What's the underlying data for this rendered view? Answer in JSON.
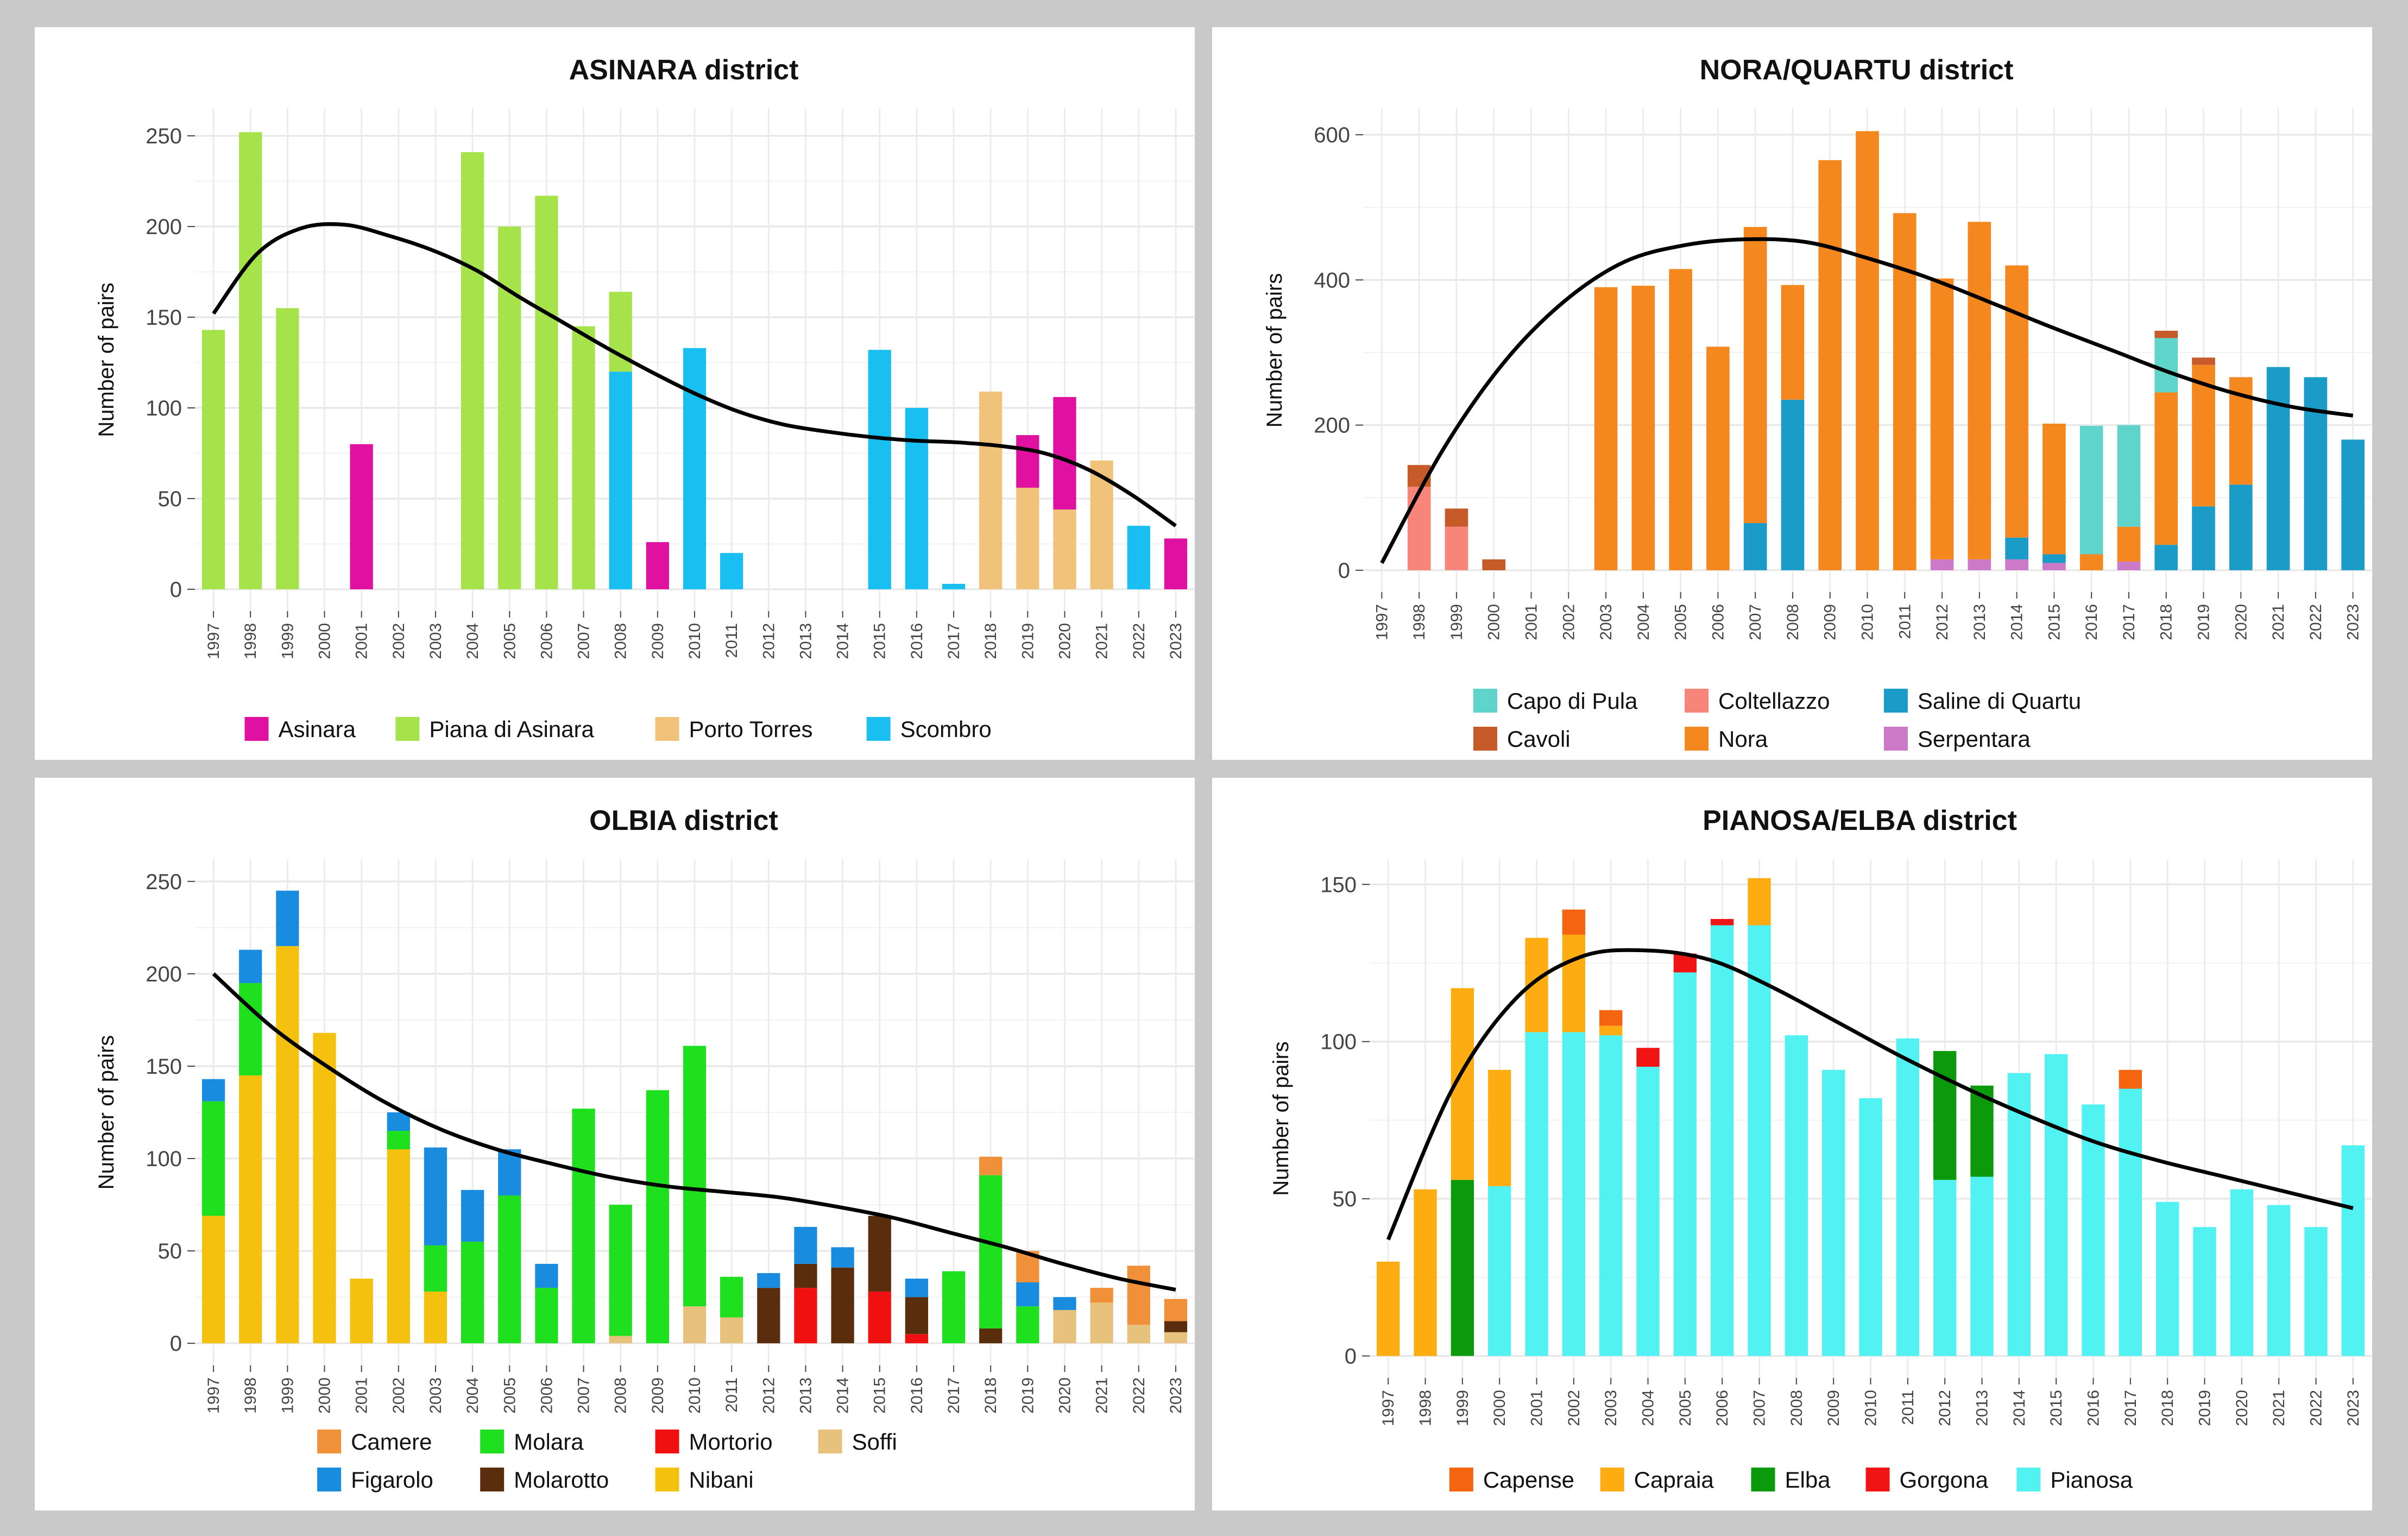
{
  "chart_data": [
    {
      "type": "bar",
      "stacked": true,
      "title": "ASINARA district",
      "xlabel": "",
      "ylabel": "Number of pairs",
      "categories": [
        "1997",
        "1998",
        "1999",
        "2000",
        "2001",
        "2002",
        "2003",
        "2004",
        "2005",
        "2006",
        "2007",
        "2008",
        "2009",
        "2010",
        "2011",
        "2012",
        "2013",
        "2014",
        "2015",
        "2016",
        "2017",
        "2018",
        "2019",
        "2020",
        "2021",
        "2022",
        "2023"
      ],
      "ylim": [
        -12,
        265
      ],
      "yticks": [
        0,
        50,
        100,
        150,
        200,
        250
      ],
      "legend_order": [
        "Asinara",
        "Piana di Asinara",
        "Porto Torres",
        "Scombro"
      ],
      "series": [
        {
          "name": "Scombro",
          "color": "#19BFF0",
          "values": [
            0,
            0,
            0,
            0,
            0,
            0,
            0,
            0,
            0,
            0,
            0,
            120,
            0,
            133,
            20,
            0,
            0,
            0,
            132,
            100,
            3,
            0,
            0,
            0,
            0,
            35,
            0
          ]
        },
        {
          "name": "Porto Torres",
          "color": "#F0C27A",
          "values": [
            0,
            0,
            0,
            0,
            0,
            0,
            0,
            0,
            0,
            0,
            0,
            0,
            0,
            0,
            0,
            0,
            0,
            0,
            0,
            0,
            0,
            109,
            56,
            44,
            71,
            0,
            0
          ]
        },
        {
          "name": "Piana di Asinara",
          "color": "#A6E34B",
          "values": [
            143,
            252,
            155,
            0,
            0,
            0,
            0,
            241,
            200,
            217,
            145,
            44,
            0,
            0,
            0,
            0,
            0,
            0,
            0,
            0,
            0,
            0,
            0,
            0,
            0,
            0,
            0
          ]
        },
        {
          "name": "Asinara",
          "color": "#E010A0",
          "values": [
            0,
            0,
            0,
            0,
            80,
            0,
            0,
            0,
            0,
            0,
            0,
            0,
            26,
            0,
            0,
            0,
            0,
            0,
            0,
            0,
            0,
            0,
            29,
            62,
            0,
            0,
            28
          ]
        }
      ],
      "trend": [
        152,
        185,
        199,
        201,
        195,
        187,
        176,
        161,
        147,
        133,
        120,
        108,
        98,
        91,
        87,
        84,
        82,
        81,
        79,
        75,
        66,
        52,
        35
      ]
    },
    {
      "type": "bar",
      "stacked": true,
      "title": "NORA/QUARTU district",
      "xlabel": "",
      "ylabel": "Number of pairs",
      "categories": [
        "1997",
        "1998",
        "1999",
        "2000",
        "2001",
        "2002",
        "2003",
        "2004",
        "2005",
        "2006",
        "2007",
        "2008",
        "2009",
        "2010",
        "2011",
        "2012",
        "2013",
        "2014",
        "2015",
        "2016",
        "2017",
        "2018",
        "2019",
        "2020",
        "2021",
        "2022",
        "2023"
      ],
      "ylim": [
        -30,
        636
      ],
      "yticks": [
        0,
        200,
        400,
        600
      ],
      "legend_order": [
        "Capo di Pula",
        "Coltellazzo",
        "Saline di Quartu",
        "Cavoli",
        "Nora",
        "Serpentara"
      ],
      "series": [
        {
          "name": "Serpentara",
          "color": "#CC79C8",
          "values": [
            0,
            0,
            0,
            0,
            0,
            0,
            0,
            0,
            0,
            0,
            0,
            0,
            0,
            0,
            0,
            15,
            15,
            15,
            10,
            0,
            12,
            0,
            0,
            0,
            0,
            0,
            0
          ]
        },
        {
          "name": "Saline di Quartu",
          "color": "#1A9BC8",
          "values": [
            0,
            0,
            0,
            0,
            0,
            0,
            0,
            0,
            0,
            0,
            65,
            235,
            0,
            0,
            0,
            0,
            0,
            30,
            12,
            0,
            0,
            35,
            88,
            118,
            280,
            266,
            180
          ]
        },
        {
          "name": "Nora",
          "color": "#F5871F",
          "values": [
            0,
            0,
            0,
            0,
            0,
            0,
            390,
            392,
            415,
            308,
            408,
            158,
            565,
            605,
            492,
            387,
            465,
            375,
            180,
            22,
            48,
            210,
            195,
            148,
            0,
            0,
            0
          ]
        },
        {
          "name": "Capo di Pula",
          "color": "#5ED4CA",
          "values": [
            0,
            0,
            0,
            0,
            0,
            0,
            0,
            0,
            0,
            0,
            0,
            0,
            0,
            0,
            0,
            0,
            0,
            0,
            0,
            177,
            140,
            75,
            0,
            0,
            0,
            0,
            0
          ]
        },
        {
          "name": "Coltellazzo",
          "color": "#F7857A",
          "values": [
            0,
            115,
            60,
            0,
            0,
            0,
            0,
            0,
            0,
            0,
            0,
            0,
            0,
            0,
            0,
            0,
            0,
            0,
            0,
            0,
            0,
            0,
            0,
            0,
            0,
            0,
            0
          ]
        },
        {
          "name": "Cavoli",
          "color": "#C65A28",
          "values": [
            0,
            30,
            25,
            15,
            0,
            0,
            0,
            0,
            0,
            0,
            0,
            0,
            0,
            0,
            0,
            0,
            0,
            0,
            0,
            0,
            0,
            10,
            10,
            0,
            0,
            0,
            0
          ]
        }
      ],
      "trend": [
        10,
        165,
        285,
        370,
        425,
        448,
        456,
        452,
        430,
        403,
        370,
        336,
        304,
        272,
        245,
        225,
        213
      ]
    },
    {
      "type": "bar",
      "stacked": true,
      "title": "OLBIA district",
      "xlabel": "",
      "ylabel": "Number of pairs",
      "categories": [
        "1997",
        "1998",
        "1999",
        "2000",
        "2001",
        "2002",
        "2003",
        "2004",
        "2005",
        "2006",
        "2007",
        "2008",
        "2009",
        "2010",
        "2011",
        "2012",
        "2013",
        "2014",
        "2015",
        "2016",
        "2017",
        "2018",
        "2019",
        "2020",
        "2021",
        "2022",
        "2023"
      ],
      "ylim": [
        -12,
        262
      ],
      "yticks": [
        0,
        50,
        100,
        150,
        200,
        250
      ],
      "legend_order": [
        "Camere",
        "Molara",
        "Mortorio",
        "Soffi",
        "Figarolo",
        "Molarotto",
        "Nibani"
      ],
      "series": [
        {
          "name": "Nibani",
          "color": "#F5C10F",
          "values": [
            69,
            145,
            215,
            168,
            35,
            105,
            28,
            0,
            0,
            0,
            0,
            0,
            0,
            0,
            0,
            0,
            0,
            0,
            0,
            0,
            0,
            0,
            0,
            0,
            0,
            0,
            0
          ]
        },
        {
          "name": "Soffi",
          "color": "#E7C27C",
          "values": [
            0,
            0,
            0,
            0,
            0,
            0,
            0,
            0,
            0,
            0,
            0,
            4,
            0,
            20,
            14,
            0,
            0,
            0,
            0,
            0,
            0,
            0,
            0,
            18,
            22,
            10,
            6
          ]
        },
        {
          "name": "Mortorio",
          "color": "#F01010",
          "values": [
            0,
            0,
            0,
            0,
            0,
            0,
            0,
            0,
            0,
            0,
            0,
            0,
            0,
            0,
            0,
            0,
            30,
            0,
            28,
            5,
            0,
            0,
            0,
            0,
            0,
            0,
            0
          ]
        },
        {
          "name": "Molarotto",
          "color": "#5A2E0C",
          "values": [
            0,
            0,
            0,
            0,
            0,
            0,
            0,
            0,
            0,
            0,
            0,
            0,
            0,
            0,
            0,
            30,
            13,
            41,
            41,
            20,
            0,
            8,
            0,
            0,
            0,
            0,
            6
          ]
        },
        {
          "name": "Molara",
          "color": "#1FE01F",
          "values": [
            62,
            50,
            0,
            0,
            0,
            10,
            25,
            55,
            80,
            30,
            127,
            71,
            137,
            141,
            22,
            0,
            0,
            0,
            0,
            0,
            39,
            83,
            20,
            0,
            0,
            0,
            0
          ]
        },
        {
          "name": "Figarolo",
          "color": "#1A8CE0",
          "values": [
            12,
            18,
            30,
            0,
            0,
            10,
            53,
            28,
            25,
            13,
            0,
            0,
            0,
            0,
            0,
            8,
            20,
            11,
            0,
            10,
            0,
            0,
            13,
            7,
            0,
            0,
            0
          ]
        },
        {
          "name": "Camere",
          "color": "#F0913A",
          "values": [
            0,
            0,
            0,
            0,
            0,
            0,
            0,
            0,
            0,
            0,
            0,
            0,
            0,
            0,
            0,
            0,
            0,
            0,
            0,
            0,
            0,
            10,
            17,
            0,
            8,
            32,
            12
          ]
        }
      ],
      "trend": [
        200,
        172,
        150,
        131,
        116,
        105,
        97,
        90,
        85,
        82,
        79,
        74,
        68,
        60,
        52,
        43,
        35,
        29
      ]
    },
    {
      "type": "bar",
      "stacked": true,
      "title": "PIANOSA/ELBA district",
      "xlabel": "",
      "ylabel": "Number of pairs",
      "categories": [
        "1997",
        "1998",
        "1999",
        "2000",
        "2001",
        "2002",
        "2003",
        "2004",
        "2005",
        "2006",
        "2007",
        "2008",
        "2009",
        "2010",
        "2011",
        "2012",
        "2013",
        "2014",
        "2015",
        "2016",
        "2017",
        "2018",
        "2019",
        "2020",
        "2021",
        "2022",
        "2023"
      ],
      "ylim": [
        -7,
        158
      ],
      "yticks": [
        0,
        50,
        100,
        150
      ],
      "legend_order": [
        "Capense",
        "Capraia",
        "Elba",
        "Gorgona",
        "Pianosa"
      ],
      "series": [
        {
          "name": "Pianosa",
          "color": "#52F2F2",
          "values": [
            0,
            0,
            0,
            54,
            103,
            103,
            102,
            92,
            122,
            137,
            137,
            102,
            91,
            82,
            101,
            56,
            57,
            90,
            96,
            80,
            85,
            49,
            41,
            53,
            48,
            41,
            67
          ]
        },
        {
          "name": "Elba",
          "color": "#0C9A0C",
          "values": [
            0,
            0,
            56,
            0,
            0,
            0,
            0,
            0,
            0,
            0,
            0,
            0,
            0,
            0,
            0,
            41,
            29,
            0,
            0,
            0,
            0,
            0,
            0,
            0,
            0,
            0,
            0
          ]
        },
        {
          "name": "Capraia",
          "color": "#FDAD12",
          "values": [
            30,
            53,
            61,
            37,
            30,
            31,
            3,
            0,
            0,
            0,
            15,
            0,
            0,
            0,
            0,
            0,
            0,
            0,
            0,
            0,
            0,
            0,
            0,
            0,
            0,
            0,
            0
          ]
        },
        {
          "name": "Gorgona",
          "color": "#F01414",
          "values": [
            0,
            0,
            0,
            0,
            0,
            0,
            0,
            6,
            6,
            2,
            0,
            0,
            0,
            0,
            0,
            0,
            0,
            0,
            0,
            0,
            0,
            0,
            0,
            0,
            0,
            0,
            0
          ]
        },
        {
          "name": "Capense",
          "color": "#F5640F",
          "values": [
            0,
            0,
            0,
            0,
            0,
            8,
            5,
            0,
            0,
            0,
            0,
            0,
            0,
            0,
            0,
            0,
            0,
            0,
            0,
            0,
            6,
            0,
            0,
            0,
            0,
            0,
            0
          ]
        }
      ],
      "trend": [
        37,
        85,
        114,
        127,
        129,
        126,
        117,
        106,
        95,
        85,
        76,
        68,
        62,
        57,
        52,
        47
      ]
    }
  ]
}
